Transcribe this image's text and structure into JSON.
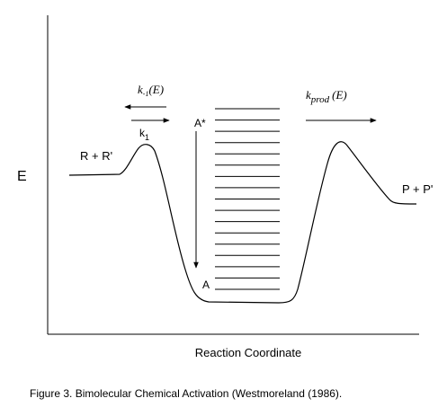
{
  "diagram": {
    "y_axis_label": "E",
    "x_axis_label": "Reaction Coordinate",
    "reactants_label": "R + R'",
    "products_label": "P + P'",
    "activated_label": "A*",
    "stabilized_label": "A",
    "k1_main": "k",
    "k1_sub": "1",
    "k_minus1_main": "k",
    "k_minus1_sub": "-1",
    "k_minus1_arg": "(E)",
    "kprod_main": "k",
    "kprod_sub": "prod",
    "kprod_arg": "(E)",
    "energy_level_count": 17
  },
  "caption": "Figure 3. Bimolecular Chemical Activation (Westmoreland (1986)."
}
